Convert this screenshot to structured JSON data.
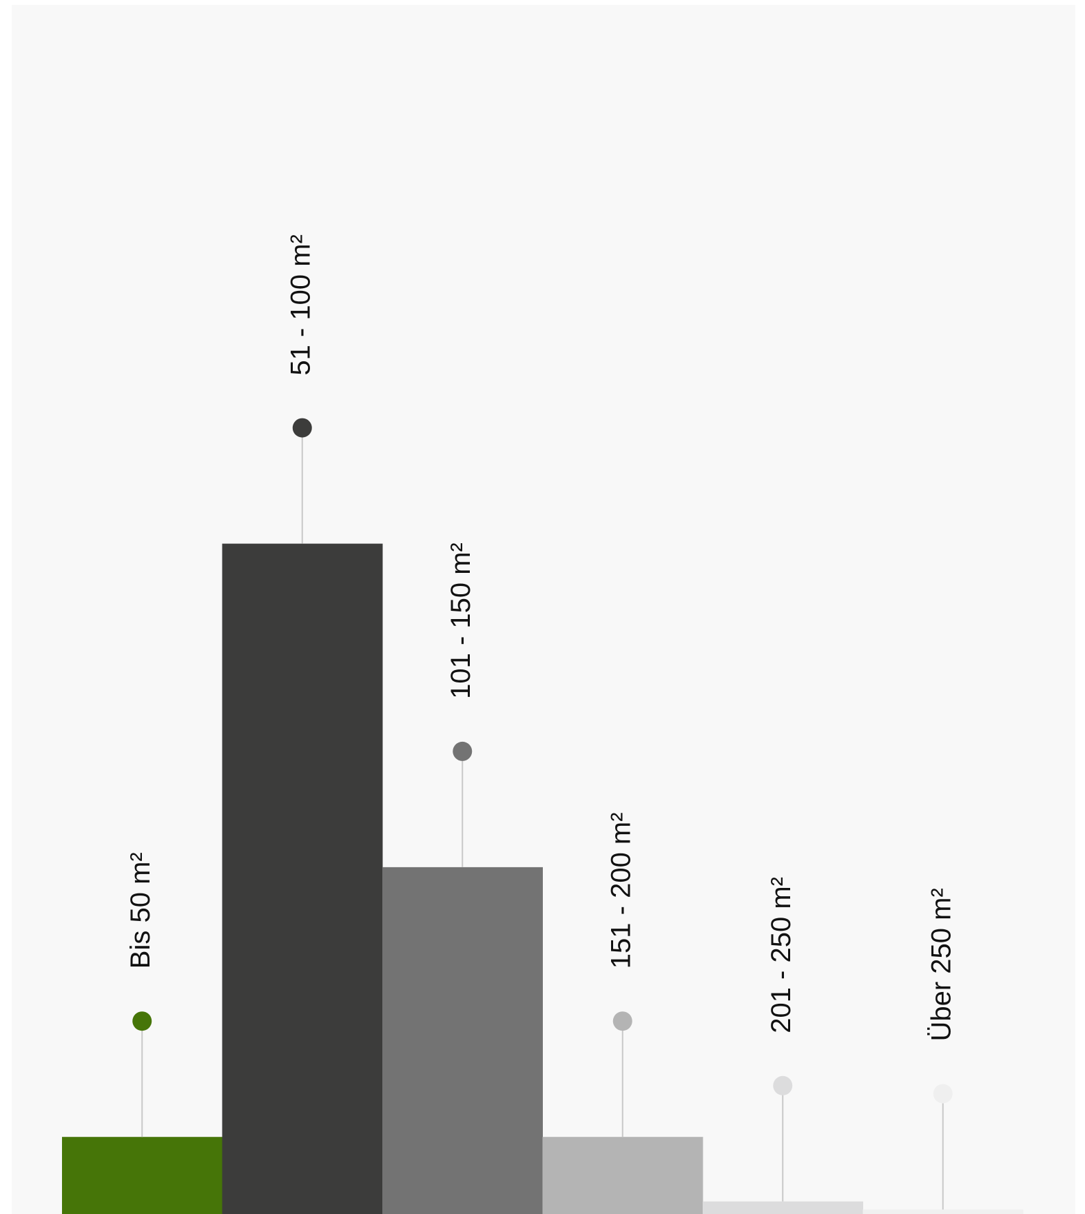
{
  "chart_data": {
    "type": "bar",
    "categories": [
      "Bis 50 m²",
      "51 - 100 m²",
      "101 - 150 m²",
      "151 - 200 m²",
      "201 - 250 m²",
      "Über 250 m²"
    ],
    "values": [
      8.6,
      74.8,
      38.7,
      8.6,
      1.4,
      0.5
    ],
    "colors": [
      "#467508",
      "#3c3c3b",
      "#737373",
      "#b4b4b4",
      "#dcdcdd",
      "#f0f0f0"
    ],
    "marker_colors": [
      "#467508",
      "#3c3c3b",
      "#737373",
      "#b4b4b4",
      "#dcdcdd",
      "#efefef"
    ],
    "stem_color": "#c8c8c8",
    "label_orientation": "vertical",
    "title": "",
    "xlabel": "",
    "ylabel": "",
    "ylim": [
      0,
      100
    ],
    "grid": false,
    "legend": "none"
  }
}
